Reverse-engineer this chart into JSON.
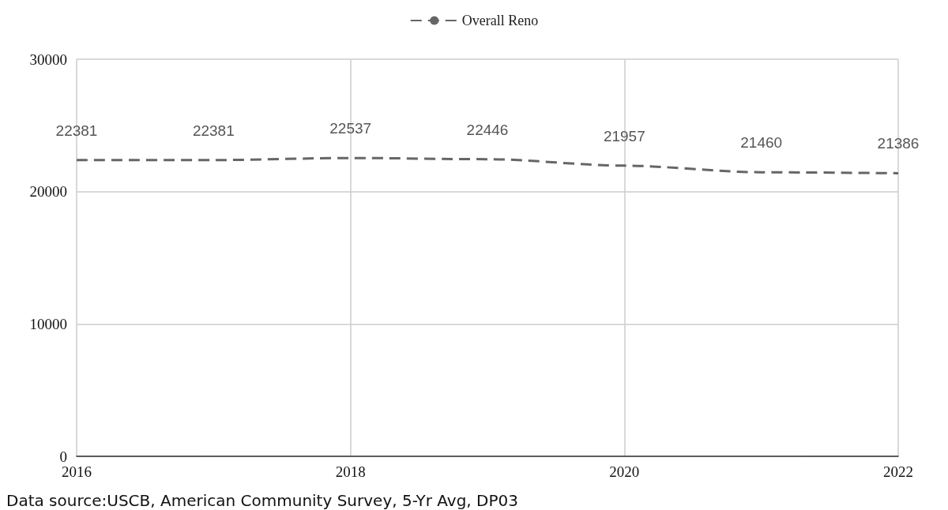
{
  "chart_data": {
    "type": "line",
    "x": [
      2016,
      2017,
      2018,
      2019,
      2020,
      2021,
      2022
    ],
    "series": [
      {
        "name": "Overall Reno",
        "color": "#666666",
        "values": [
          22381,
          22381,
          22537,
          22446,
          21957,
          21460,
          21386
        ]
      }
    ],
    "xlim": [
      2016,
      2022
    ],
    "xticks": [
      2016,
      2018,
      2020,
      2022
    ],
    "ylim": [
      0,
      30000
    ],
    "yticks": [
      0,
      10000,
      20000,
      30000
    ],
    "grid": true,
    "legend": "top",
    "line_style": "dashed",
    "marker": "none",
    "data_labels": true,
    "annotations": [
      "Data source:USCB, American Community Survey, 5-Yr Avg, DP03"
    ]
  }
}
